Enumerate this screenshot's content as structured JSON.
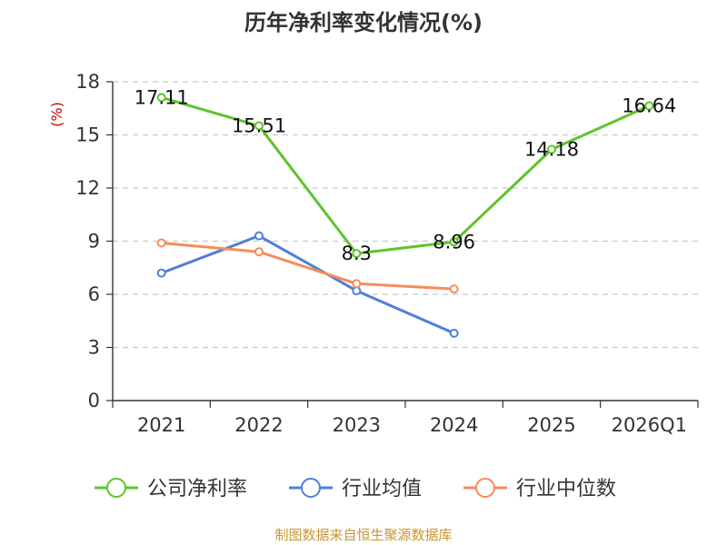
{
  "chart_data": {
    "type": "line",
    "title": "历年净利率变化情况(%)",
    "ylabel": "(%)",
    "xlabel": "",
    "categories": [
      "2021",
      "2022",
      "2023",
      "2024",
      "2025",
      "2026Q1"
    ],
    "ylim": [
      0,
      18
    ],
    "yticks": [
      0,
      3,
      6,
      9,
      12,
      15,
      18
    ],
    "grid": true,
    "legend_position": "bottom",
    "series": [
      {
        "name": "公司净利率",
        "color": "#5ec42a",
        "values": [
          17.11,
          15.51,
          8.3,
          8.96,
          14.18,
          16.64
        ],
        "labels": [
          "17.11",
          "15.51",
          "8.3",
          "8.96",
          "14.18",
          "16.64"
        ]
      },
      {
        "name": "行业均值",
        "color": "#4f7fd9",
        "values": [
          7.2,
          9.3,
          6.2,
          3.8,
          null,
          null
        ]
      },
      {
        "name": "行业中位数",
        "color": "#f68c5a",
        "values": [
          8.9,
          8.4,
          6.6,
          6.3,
          null,
          null
        ]
      }
    ],
    "source": "制图数据来自恒生聚源数据库"
  }
}
